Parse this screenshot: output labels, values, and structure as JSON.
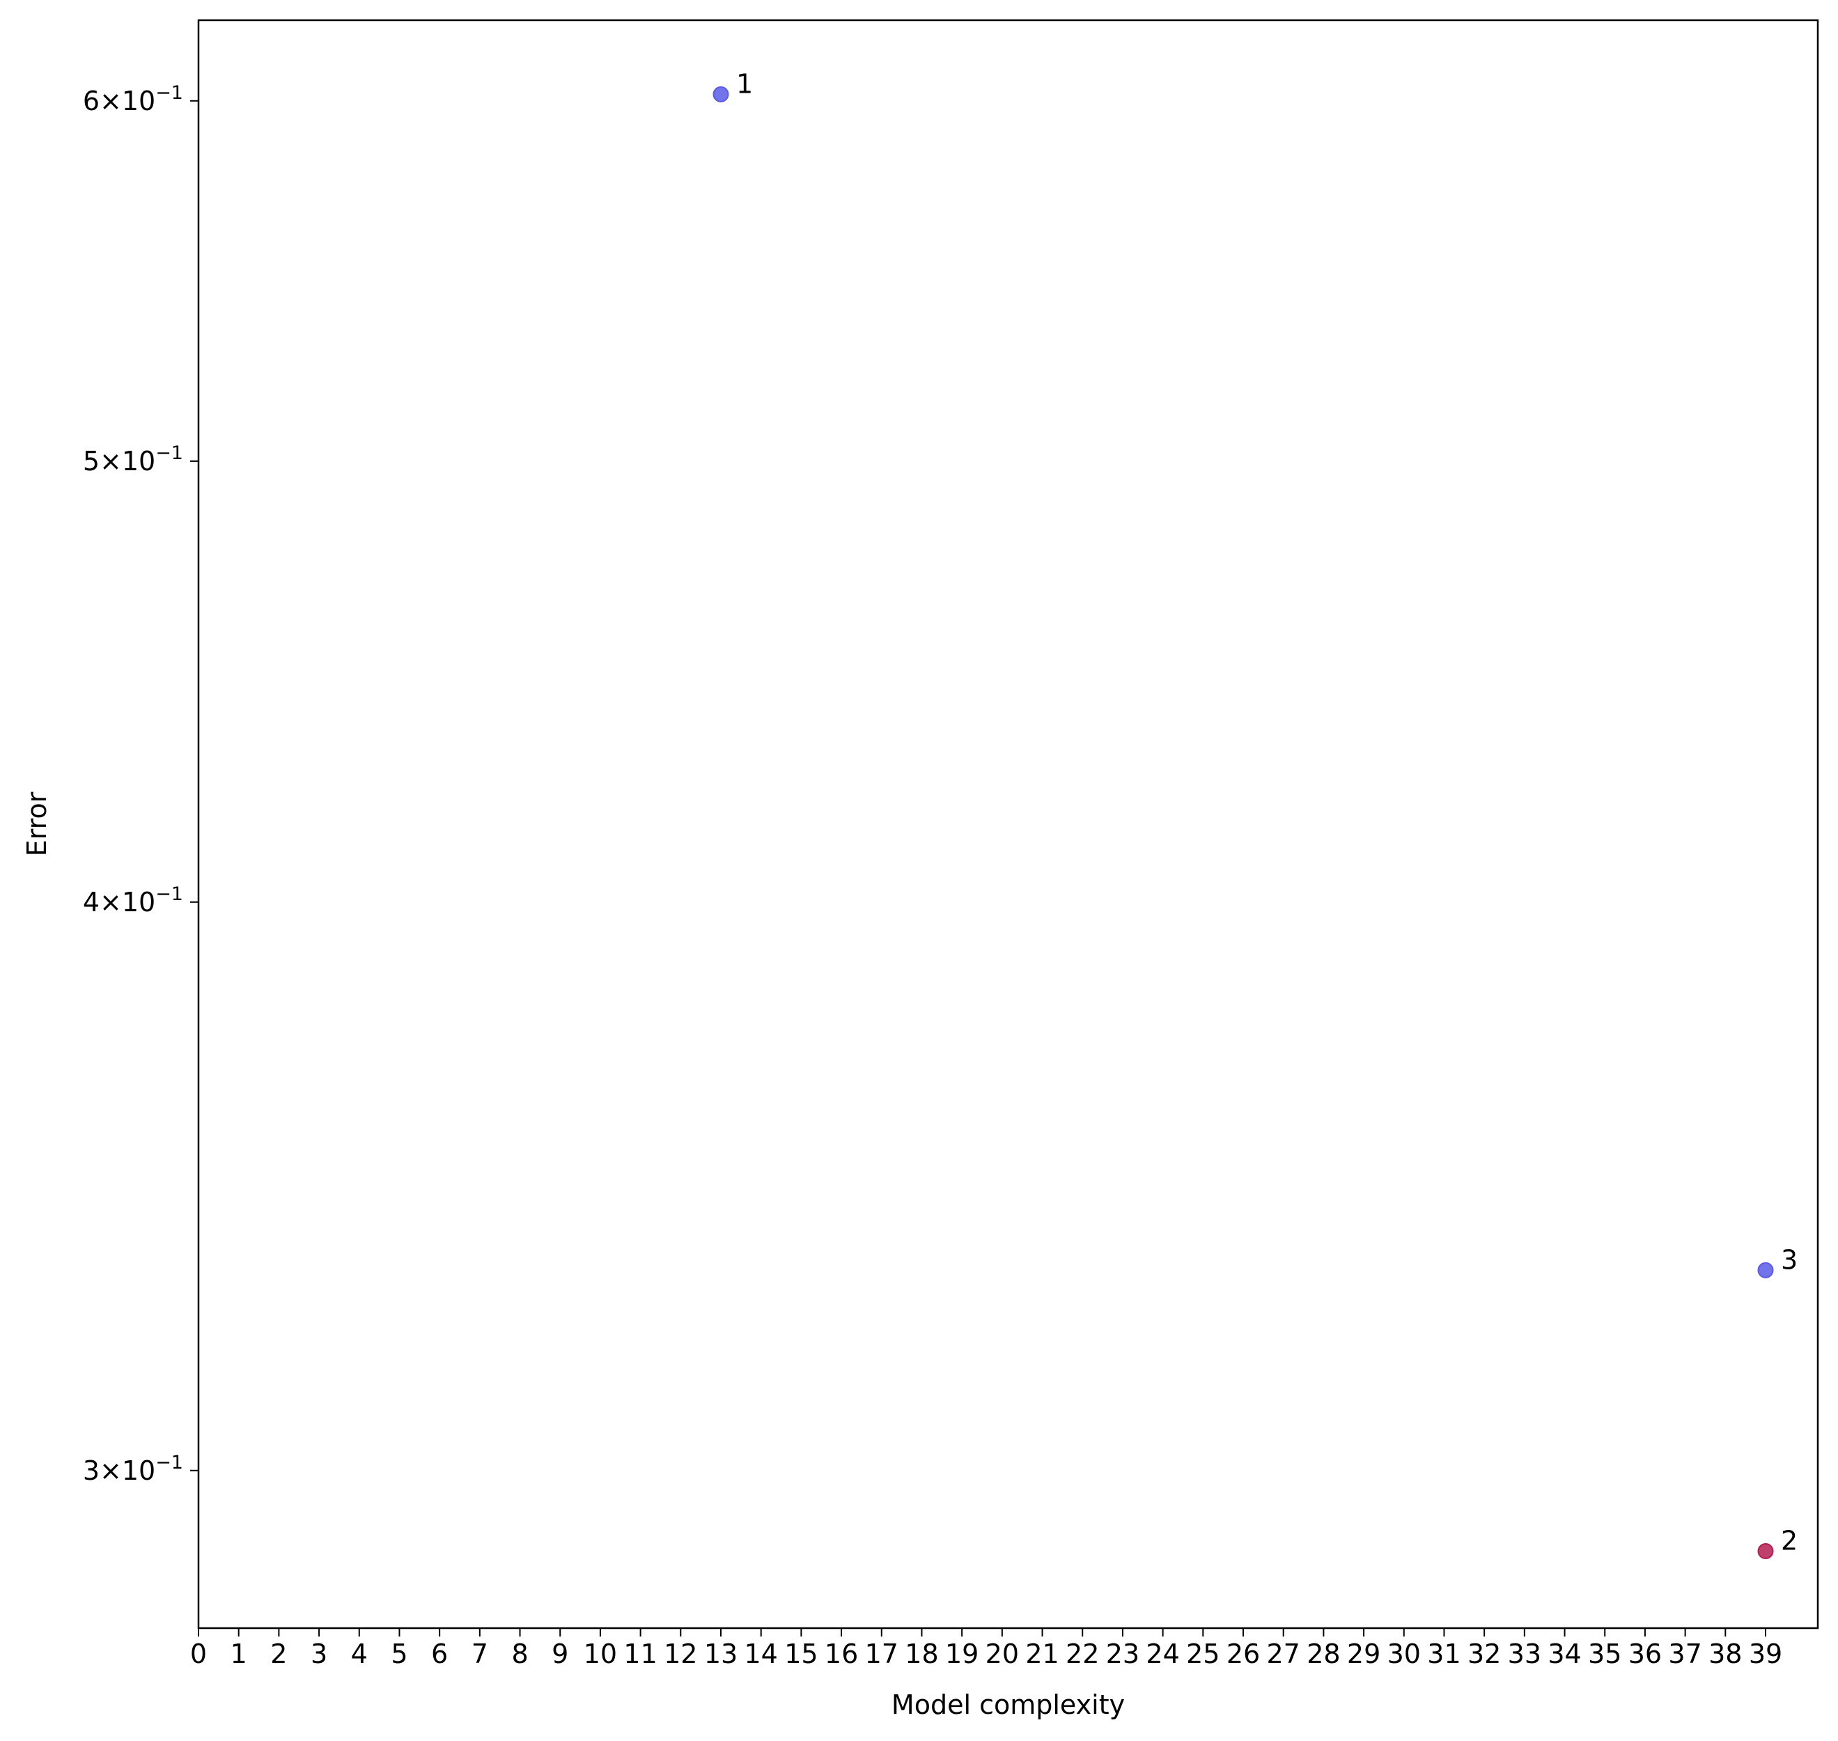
{
  "chart_data": {
    "type": "scatter",
    "title": "",
    "xlabel": "Model complexity",
    "ylabel": "Error",
    "x_ticks": [
      "0",
      "1",
      "2",
      "3",
      "4",
      "5",
      "6",
      "7",
      "8",
      "9",
      "10",
      "11",
      "12",
      "13",
      "14",
      "15",
      "16",
      "17",
      "18",
      "19",
      "20",
      "21",
      "22",
      "23",
      "24",
      "25",
      "26",
      "27",
      "28",
      "29",
      "30",
      "31",
      "32",
      "33",
      "34",
      "35",
      "36",
      "37",
      "38",
      "39"
    ],
    "xlim": [
      0,
      40.3
    ],
    "y_scale": "log",
    "ylim": [
      0.277,
      0.625
    ],
    "y_ticks": [
      {
        "value": 0.3,
        "mantissa": "3",
        "exponent": "−1"
      },
      {
        "value": 0.4,
        "mantissa": "4",
        "exponent": "−1"
      },
      {
        "value": 0.5,
        "mantissa": "5",
        "exponent": "−1"
      },
      {
        "value": 0.6,
        "mantissa": "6",
        "exponent": "−1"
      }
    ],
    "points": [
      {
        "label": "1",
        "x": 13,
        "y": 0.602,
        "color": "#5a5ae6"
      },
      {
        "label": "3",
        "x": 39,
        "y": 0.332,
        "color": "#5a5ae6"
      },
      {
        "label": "2",
        "x": 39,
        "y": 0.288,
        "color": "#b41e50"
      }
    ],
    "grid": false,
    "legend": "none"
  }
}
